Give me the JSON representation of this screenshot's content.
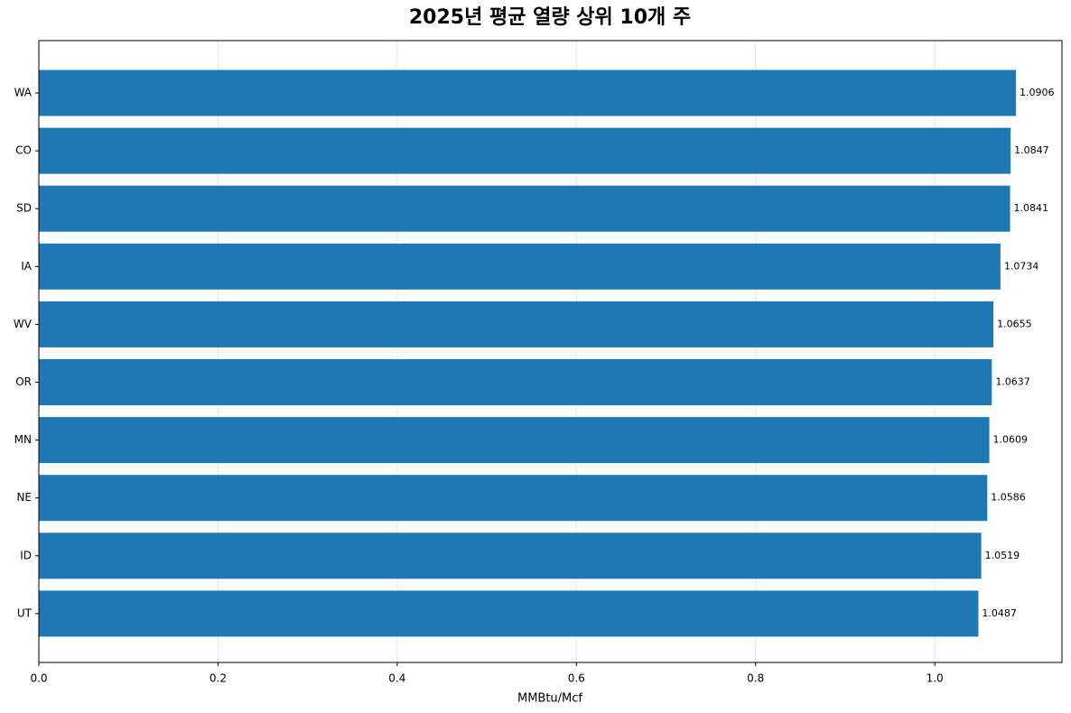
{
  "chart_data": {
    "type": "barh",
    "title": "2025년 평균 열량 상위 10개 주",
    "xlabel": "MMBtu/Mcf",
    "categories": [
      "WA",
      "CO",
      "SD",
      "IA",
      "WV",
      "OR",
      "MN",
      "NE",
      "ID",
      "UT"
    ],
    "values": [
      1.0906,
      1.0847,
      1.0841,
      1.0734,
      1.0655,
      1.0637,
      1.0609,
      1.0586,
      1.0519,
      1.0487
    ],
    "color": "#1f77b4",
    "xlim": [
      0,
      1.142
    ],
    "xticks": [
      {
        "value": 0,
        "label": "0.0"
      },
      0.2,
      0.4,
      0.6,
      0.8,
      {
        "value": 1,
        "label": "1.0"
      }
    ],
    "grid": true
  }
}
